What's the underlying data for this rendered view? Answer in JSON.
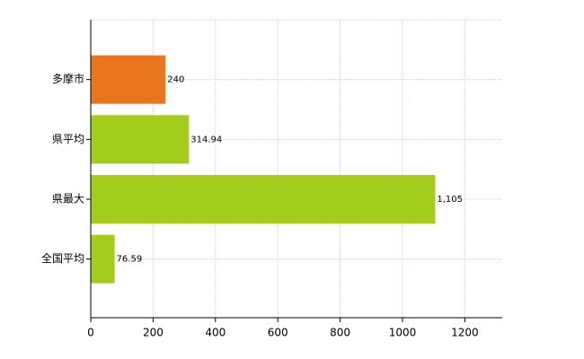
{
  "chart_data": {
    "type": "bar",
    "orientation": "horizontal",
    "categories": [
      "多摩市",
      "県平均",
      "県最大",
      "全国平均"
    ],
    "values": [
      240,
      314.94,
      1105,
      76.59
    ],
    "value_labels": [
      "240",
      "314.94",
      "1,105",
      "76.59"
    ],
    "colors": [
      "#e8761f",
      "#a3cc1c",
      "#a3cc1c",
      "#a3cc1c"
    ],
    "xlim": [
      0,
      1320
    ],
    "xticks": [
      0,
      200,
      400,
      600,
      800,
      1000,
      1200
    ],
    "grid": true
  }
}
